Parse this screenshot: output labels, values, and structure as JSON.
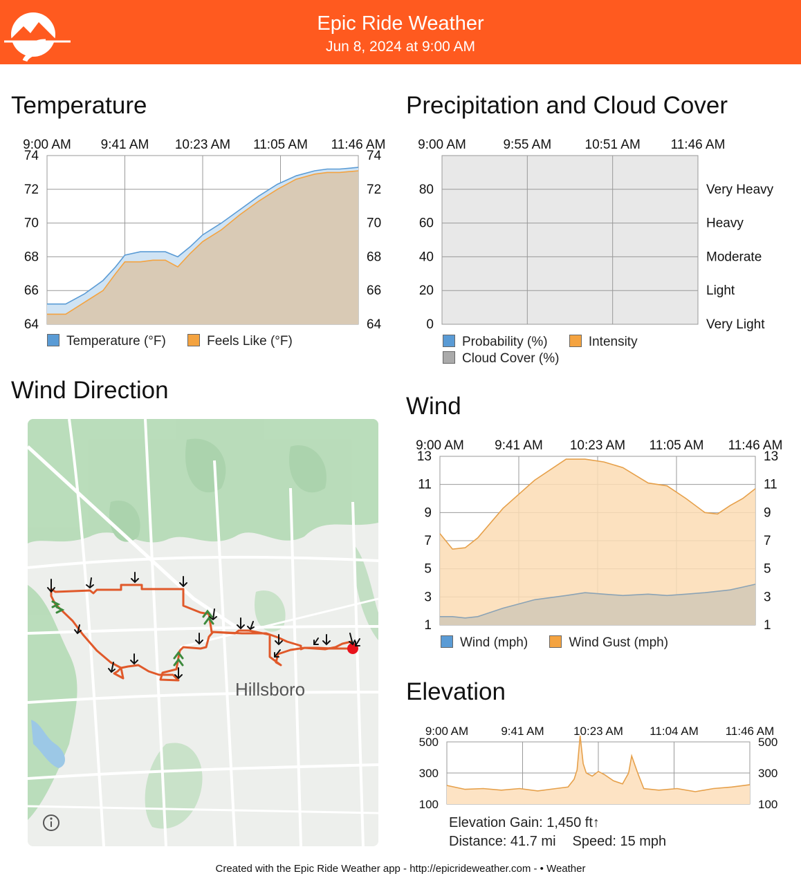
{
  "header": {
    "title": "Epic Ride Weather",
    "subtitle": "Jun 8, 2024 at 9:00 AM",
    "logo_icon": "mountain-road-logo-icon"
  },
  "colors": {
    "brand": "#ff5a1f",
    "temperature": "#5a9bd5",
    "feels_like": "#f4a340",
    "cloud_cover": "#aaaaaa",
    "route": "#e0592a",
    "endpoint": "#e8131c",
    "upwind_chevron": "#3d8a3d"
  },
  "temperature": {
    "title": "Temperature",
    "legend": [
      "Temperature (°F)",
      "Feels Like (°F)"
    ]
  },
  "precipitation": {
    "title": "Precipitation and Cloud Cover",
    "legend": [
      "Probability (%)",
      "Intensity",
      "Cloud Cover (%)"
    ]
  },
  "wind_direction": {
    "title": "Wind Direction",
    "map_label": "Hillsboro",
    "info_icon": "info-icon"
  },
  "wind": {
    "title": "Wind",
    "legend": [
      "Wind (mph)",
      "Wind Gust (mph)"
    ]
  },
  "elevation": {
    "title": "Elevation",
    "gain": "Elevation Gain: 1,450 ft↑",
    "distance": "Distance: 41.7 mi",
    "speed": "Speed: 15 mph"
  },
  "footer": {
    "text": "Created with the Epic Ride Weather app - http://epicrideweather.com - ",
    "apple_icon": "apple-logo-icon",
    "weather": "Weather"
  },
  "chart_data": [
    {
      "id": "temperature",
      "type": "area",
      "x_labels": [
        "9:00 AM",
        "9:41 AM",
        "10:23 AM",
        "11:05 AM",
        "11:46 AM"
      ],
      "ylim": [
        64,
        74
      ],
      "yticks": [
        64,
        66,
        68,
        70,
        72,
        74
      ],
      "grid": true,
      "legend_placement": "bottom",
      "x": [
        0,
        0.06,
        0.12,
        0.18,
        0.22,
        0.25,
        0.3,
        0.34,
        0.38,
        0.42,
        0.46,
        0.5,
        0.56,
        0.62,
        0.68,
        0.74,
        0.8,
        0.86,
        0.9,
        0.94,
        1.0
      ],
      "series": [
        {
          "name": "Temperature (°F)",
          "values": [
            65.2,
            65.2,
            65.8,
            66.6,
            67.4,
            68.1,
            68.3,
            68.3,
            68.3,
            68.0,
            68.6,
            69.3,
            70.0,
            70.8,
            71.6,
            72.3,
            72.8,
            73.1,
            73.2,
            73.2,
            73.3
          ]
        },
        {
          "name": "Feels Like (°F)",
          "values": [
            64.6,
            64.6,
            65.3,
            66.0,
            67.0,
            67.7,
            67.7,
            67.8,
            67.8,
            67.4,
            68.2,
            68.9,
            69.6,
            70.5,
            71.3,
            72.0,
            72.6,
            72.9,
            73.0,
            73.0,
            73.1
          ]
        }
      ]
    },
    {
      "id": "precipitation",
      "type": "area",
      "x_labels": [
        "9:00 AM",
        "9:55 AM",
        "10:51 AM",
        "11:46 AM"
      ],
      "ylim": [
        0,
        100
      ],
      "yticks_left": [
        0,
        20,
        40,
        60,
        80
      ],
      "yticks_right": [
        "Very Light",
        "Light",
        "Moderate",
        "Heavy",
        "Very Heavy"
      ],
      "grid": true,
      "legend_placement": "bottom",
      "series": [
        {
          "name": "Probability (%)",
          "values": [
            0,
            0,
            0,
            0
          ]
        },
        {
          "name": "Intensity",
          "values": [
            0,
            0,
            0,
            0
          ]
        },
        {
          "name": "Cloud Cover (%)",
          "values": [
            0,
            0,
            0,
            0
          ]
        }
      ]
    },
    {
      "id": "wind",
      "type": "area",
      "x_labels": [
        "9:00 AM",
        "9:41 AM",
        "10:23 AM",
        "11:05 AM",
        "11:46 AM"
      ],
      "ylim": [
        1,
        13
      ],
      "yticks": [
        1,
        3,
        5,
        7,
        9,
        11,
        13
      ],
      "grid": true,
      "legend_placement": "bottom",
      "x": [
        0,
        0.04,
        0.08,
        0.12,
        0.2,
        0.3,
        0.4,
        0.46,
        0.52,
        0.58,
        0.66,
        0.72,
        0.78,
        0.84,
        0.88,
        0.92,
        0.96,
        1.0
      ],
      "series": [
        {
          "name": "Wind (mph)",
          "values": [
            1.6,
            1.6,
            1.5,
            1.6,
            2.2,
            2.8,
            3.1,
            3.3,
            3.2,
            3.1,
            3.2,
            3.1,
            3.2,
            3.3,
            3.4,
            3.5,
            3.7,
            3.9
          ]
        },
        {
          "name": "Wind Gust (mph)",
          "values": [
            7.5,
            6.4,
            6.5,
            7.2,
            9.3,
            11.3,
            12.8,
            12.8,
            12.6,
            12.2,
            11.1,
            10.9,
            10.0,
            9.0,
            8.9,
            9.5,
            10.0,
            10.7
          ]
        }
      ]
    },
    {
      "id": "elevation",
      "type": "area",
      "x_labels": [
        "9:00 AM",
        "9:41 AM",
        "10:23 AM",
        "11:04 AM",
        "11:46 AM"
      ],
      "ylim": [
        100,
        500
      ],
      "yticks": [
        100,
        300,
        500
      ],
      "grid": true,
      "x": [
        0,
        0.06,
        0.12,
        0.18,
        0.24,
        0.3,
        0.36,
        0.4,
        0.42,
        0.43,
        0.44,
        0.45,
        0.46,
        0.48,
        0.5,
        0.52,
        0.55,
        0.58,
        0.6,
        0.61,
        0.63,
        0.65,
        0.7,
        0.76,
        0.82,
        0.88,
        0.94,
        1.0
      ],
      "series": [
        {
          "name": "Elevation (ft)",
          "values": [
            220,
            195,
            200,
            190,
            200,
            185,
            200,
            210,
            260,
            320,
            540,
            360,
            300,
            280,
            310,
            290,
            250,
            230,
            300,
            410,
            300,
            200,
            190,
            200,
            180,
            200,
            210,
            225
          ]
        }
      ]
    }
  ]
}
